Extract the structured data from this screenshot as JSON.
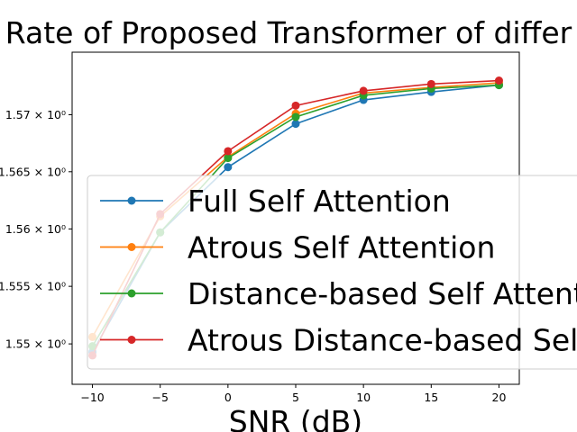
{
  "chart_data": {
    "type": "line",
    "title": "Rate of Proposed Transformer of differ",
    "xlabel": "SNR (dB)",
    "ylabel": "",
    "x": [
      -10,
      -5,
      0,
      5,
      10,
      15,
      20
    ],
    "xticks": [
      "−10",
      "−5",
      "0",
      "5",
      "10",
      "15",
      "20"
    ],
    "xlim": [
      -11.5,
      21.5
    ],
    "yscale": "log",
    "ylim": [
      1.5465,
      1.5755
    ],
    "yticks": [
      {
        "value": 1.55,
        "label": "1.55 × 10⁰"
      },
      {
        "value": 1.555,
        "label": "1.555 × 10⁰"
      },
      {
        "value": 1.56,
        "label": "1.56 × 10⁰"
      },
      {
        "value": 1.565,
        "label": "1.565 × 10⁰"
      },
      {
        "value": 1.57,
        "label": "1.57 × 10⁰"
      }
    ],
    "grid": false,
    "legend": "center-right",
    "series": [
      {
        "name": "Full Self Attention",
        "color": "#1f77b4",
        "values": [
          1.5493,
          1.5597,
          1.5654,
          1.5692,
          1.5713,
          1.572,
          1.5726
        ]
      },
      {
        "name": "Atrous Self Attention",
        "color": "#ff7f0e",
        "values": [
          1.5506,
          1.5611,
          1.5663,
          1.5701,
          1.5719,
          1.5724,
          1.5728
        ]
      },
      {
        "name": "Distance-based Self Attention",
        "color": "#2ca02c",
        "values": [
          1.5498,
          1.5597,
          1.5662,
          1.5698,
          1.5717,
          1.5723,
          1.5726
        ]
      },
      {
        "name": "Atrous Distance-based Self Attention",
        "color": "#d62728",
        "values": [
          1.549,
          1.5613,
          1.5668,
          1.5708,
          1.5721,
          1.5727,
          1.573
        ]
      }
    ]
  }
}
